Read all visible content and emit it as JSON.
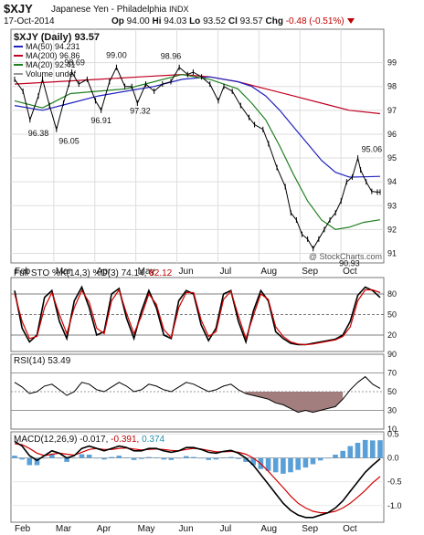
{
  "header": {
    "symbol": "$XJY",
    "name": "Japanese Yen - Philadelphia",
    "exchange": "INDX",
    "date": "17-Oct-2014",
    "open_label": "Op",
    "open": "94.00",
    "high_label": "Hi",
    "high": "94.03",
    "low_label": "Lo",
    "low": "93.52",
    "close_label": "Cl",
    "close": "93.57",
    "change_label": "Chg",
    "change": "-0.48 (-0.51%)"
  },
  "watermark": "@ StockCharts.com",
  "colors": {
    "price_up": "#000000",
    "ma50": "#2020c0",
    "ma200": "#c00020",
    "ma20": "#208020",
    "sto_k": "#000000",
    "sto_d": "#d00000",
    "rsi_fill": "#8b5e5e",
    "macd_hist": "#5aa0d8",
    "macd_line": "#000000",
    "macd_signal": "#d00000",
    "macd_hist_label": "#1f8fb0"
  },
  "chart_data": [
    {
      "type": "line",
      "panel": "price",
      "title": "$XJY (Daily) 93.57",
      "legend": [
        {
          "label": "MA(50) 94.231",
          "color": "#2020c0"
        },
        {
          "label": "MA(200) 96.86",
          "color": "#c00020"
        },
        {
          "label": "MA(20) 92.41",
          "color": "#208020"
        },
        {
          "label": "Volume undef",
          "color": "#999999"
        }
      ],
      "x_labels": [
        "Feb",
        "Mar",
        "Apr",
        "May",
        "Jun",
        "Jul",
        "Aug",
        "Sep",
        "Oct"
      ],
      "ylim": [
        90.6,
        100.4
      ],
      "yticks": [
        91,
        92,
        93,
        94,
        95,
        96,
        97,
        98,
        99
      ],
      "grid": true,
      "series": [
        {
          "name": "$XJY (Daily)",
          "x": [
            0,
            6,
            11,
            17,
            20,
            25,
            30,
            35,
            39,
            41,
            46,
            52,
            58,
            62,
            68,
            73,
            79,
            84,
            88,
            94,
            100,
            106,
            112,
            118,
            124,
            128,
            134,
            140,
            146,
            150,
            156,
            162,
            168,
            172,
            178,
            182,
            188,
            194,
            198,
            202,
            206,
            210,
            214,
            218,
            222,
            226,
            230,
            234,
            238,
            242,
            246,
            248,
            252,
            256,
            260,
            262
          ],
          "values": [
            98.3,
            97.8,
            96.6,
            97.6,
            98.3,
            97.2,
            96.2,
            97.3,
            98.1,
            98.6,
            98.1,
            98.3,
            97.4,
            97.0,
            98.2,
            98.8,
            98.0,
            98.0,
            97.3,
            98.1,
            97.8,
            98.1,
            98.2,
            98.8,
            98.5,
            98.6,
            98.4,
            98.1,
            97.4,
            98.0,
            97.8,
            97.2,
            96.7,
            96.4,
            96.2,
            95.6,
            94.6,
            93.8,
            92.7,
            92.4,
            91.8,
            91.6,
            91.2,
            91.6,
            92.0,
            92.4,
            92.7,
            93.2,
            94.0,
            94.2,
            95.0,
            94.5,
            94.0,
            93.6,
            93.57,
            93.57
          ]
        },
        {
          "name": "MA(50)",
          "x": [
            0,
            20,
            40,
            60,
            80,
            100,
            120,
            140,
            160,
            170,
            180,
            190,
            200,
            210,
            220,
            230,
            240,
            250,
            262
          ],
          "values": [
            97.2,
            97.0,
            97.3,
            97.6,
            97.8,
            98.0,
            98.3,
            98.4,
            98.2,
            98.0,
            97.6,
            97.0,
            96.3,
            95.6,
            94.9,
            94.4,
            94.2,
            94.21,
            94.23
          ]
        },
        {
          "name": "MA(200)",
          "x": [
            0,
            30,
            60,
            90,
            120,
            140,
            160,
            180,
            200,
            220,
            240,
            262
          ],
          "values": [
            98.1,
            98.2,
            98.3,
            98.4,
            98.5,
            98.4,
            98.2,
            97.9,
            97.6,
            97.3,
            97.0,
            96.86
          ]
        },
        {
          "name": "MA(20)",
          "x": [
            0,
            20,
            40,
            60,
            80,
            100,
            120,
            140,
            160,
            170,
            180,
            190,
            200,
            210,
            220,
            230,
            240,
            250,
            262
          ],
          "values": [
            97.4,
            97.1,
            97.7,
            97.8,
            97.9,
            98.2,
            98.5,
            98.3,
            97.9,
            97.3,
            96.6,
            95.5,
            94.3,
            93.2,
            92.4,
            92.0,
            92.1,
            92.3,
            92.41
          ]
        }
      ],
      "annotations": [
        {
          "x": 17,
          "y": 96.38,
          "text": "96.38",
          "pos": "below"
        },
        {
          "x": 39,
          "y": 96.05,
          "text": "96.05",
          "pos": "below"
        },
        {
          "x": 43,
          "y": 98.69,
          "text": "98.69",
          "pos": "above"
        },
        {
          "x": 62,
          "y": 96.91,
          "text": "96.91",
          "pos": "below"
        },
        {
          "x": 73,
          "y": 99.0,
          "text": "99.00",
          "pos": "above"
        },
        {
          "x": 90,
          "y": 97.32,
          "text": "97.32",
          "pos": "below"
        },
        {
          "x": 112,
          "y": 98.96,
          "text": "98.96",
          "pos": "above"
        },
        {
          "x": 256,
          "y": 95.06,
          "text": "95.06",
          "pos": "above"
        },
        {
          "x": 240,
          "y": 90.93,
          "text": "90.93",
          "pos": "below"
        }
      ]
    },
    {
      "type": "line",
      "panel": "stochastic",
      "title": "Full STO %K(14,3) %D(3) 74.14, 82.12",
      "title_parts": {
        "label": "Full STO %K(14,3) %D(3)",
        "k": "74.14,",
        "d": "82.12"
      },
      "ylim": [
        0,
        100
      ],
      "yticks": [
        20,
        50,
        80
      ],
      "series": [
        {
          "name": "%K(14,3)",
          "values": [
            85,
            30,
            10,
            20,
            75,
            85,
            40,
            15,
            70,
            90,
            60,
            20,
            25,
            80,
            88,
            45,
            15,
            55,
            85,
            60,
            20,
            15,
            70,
            85,
            80,
            35,
            12,
            30,
            80,
            85,
            40,
            10,
            55,
            85,
            70,
            25,
            15,
            8,
            6,
            6,
            8,
            10,
            12,
            14,
            20,
            40,
            78,
            90,
            85,
            75
          ]
        },
        {
          "name": "%D(3)",
          "values": [
            80,
            40,
            15,
            18,
            60,
            82,
            50,
            22,
            60,
            85,
            68,
            30,
            22,
            70,
            86,
            52,
            22,
            48,
            80,
            65,
            28,
            16,
            60,
            82,
            82,
            42,
            18,
            25,
            72,
            84,
            48,
            15,
            48,
            80,
            72,
            32,
            18,
            10,
            7,
            6,
            7,
            9,
            11,
            13,
            18,
            32,
            70,
            86,
            86,
            82
          ]
        }
      ]
    },
    {
      "type": "line",
      "panel": "rsi",
      "title": "RSI(14) 53.49",
      "ylim": [
        10,
        90
      ],
      "yticks": [
        10,
        30,
        50,
        70,
        90
      ],
      "series": [
        {
          "name": "RSI(14)",
          "values": [
            60,
            55,
            48,
            50,
            56,
            58,
            52,
            46,
            50,
            60,
            58,
            52,
            50,
            55,
            60,
            56,
            50,
            52,
            58,
            56,
            52,
            50,
            55,
            60,
            58,
            54,
            50,
            52,
            56,
            58,
            52,
            48,
            46,
            44,
            42,
            38,
            36,
            32,
            28,
            30,
            28,
            30,
            32,
            34,
            42,
            52,
            60,
            66,
            58,
            53.49
          ]
        }
      ]
    },
    {
      "type": "bar",
      "panel": "macd",
      "title": "MACD(12,26,9) -0.017, -0.391, 0.374",
      "title_parts": {
        "label": "MACD(12,26,9)",
        "macd": "-0.017,",
        "signal": "-0.391,",
        "hist": "0.374"
      },
      "ylim": [
        -1.35,
        0.55
      ],
      "yticks": [
        -1.0,
        -0.5,
        0.0,
        0.5
      ],
      "series": [
        {
          "name": "MACD",
          "values": [
            0.35,
            0.25,
            0.05,
            -0.05,
            0.05,
            0.15,
            0.1,
            0.0,
            0.05,
            0.2,
            0.25,
            0.2,
            0.15,
            0.2,
            0.25,
            0.22,
            0.15,
            0.15,
            0.2,
            0.2,
            0.15,
            0.12,
            0.15,
            0.22,
            0.22,
            0.18,
            0.12,
            0.1,
            0.14,
            0.16,
            0.1,
            0.0,
            -0.15,
            -0.35,
            -0.55,
            -0.75,
            -0.95,
            -1.1,
            -1.2,
            -1.25,
            -1.25,
            -1.2,
            -1.15,
            -1.05,
            -0.9,
            -0.7,
            -0.5,
            -0.3,
            -0.15,
            -0.017
          ]
        },
        {
          "name": "Signal",
          "values": [
            0.3,
            0.28,
            0.2,
            0.1,
            0.05,
            0.08,
            0.1,
            0.08,
            0.06,
            0.12,
            0.18,
            0.2,
            0.18,
            0.18,
            0.2,
            0.21,
            0.19,
            0.17,
            0.18,
            0.19,
            0.18,
            0.16,
            0.15,
            0.18,
            0.2,
            0.19,
            0.16,
            0.13,
            0.13,
            0.14,
            0.12,
            0.08,
            0.0,
            -0.12,
            -0.28,
            -0.45,
            -0.62,
            -0.8,
            -0.95,
            -1.05,
            -1.12,
            -1.15,
            -1.15,
            -1.12,
            -1.05,
            -0.95,
            -0.82,
            -0.68,
            -0.52,
            -0.391
          ]
        },
        {
          "name": "Histogram",
          "values": [
            0.05,
            -0.03,
            -0.15,
            -0.15,
            0.0,
            0.07,
            0.0,
            -0.08,
            -0.01,
            0.08,
            0.07,
            0.0,
            -0.03,
            0.02,
            0.05,
            0.01,
            -0.04,
            -0.02,
            0.02,
            0.01,
            -0.03,
            -0.04,
            0.0,
            0.04,
            0.02,
            -0.01,
            -0.04,
            -0.03,
            0.01,
            0.02,
            -0.02,
            -0.08,
            -0.15,
            -0.23,
            -0.27,
            -0.3,
            -0.33,
            -0.3,
            -0.25,
            -0.2,
            -0.13,
            -0.05,
            0.0,
            0.07,
            0.15,
            0.25,
            0.32,
            0.38,
            0.37,
            0.374
          ]
        }
      ]
    }
  ]
}
